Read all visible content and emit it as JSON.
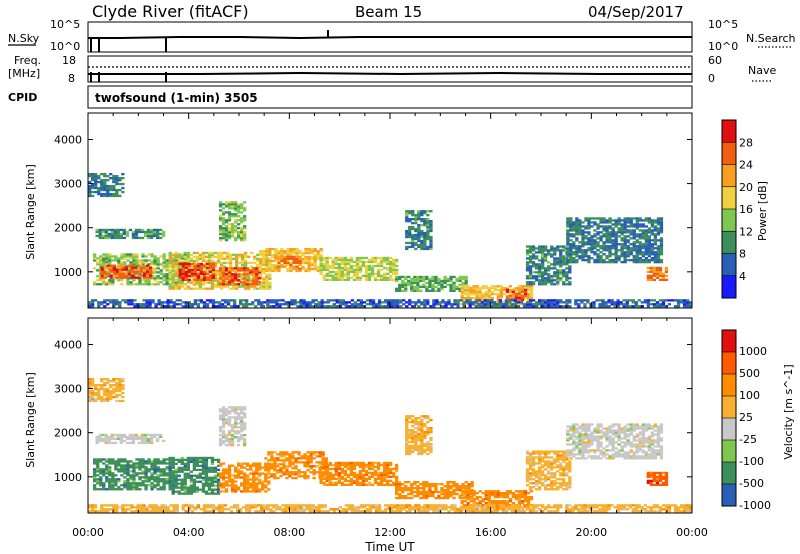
{
  "header": {
    "station": "Clyde River (fitACF)",
    "beam": "Beam 15",
    "date": "04/Sep/2017"
  },
  "strip_panels": {
    "nsky_label": "N.Sky",
    "nsearch_label": "N.Search",
    "log_top": "10^5",
    "log_bottom": "10^0",
    "freq_label_line1": "Freq.",
    "freq_label_line2": "[MHz]",
    "freq_top": "18",
    "freq_bottom": "8",
    "nave_label": "Nave",
    "nave_top": "60",
    "nave_bottom": "0",
    "cpid_label": "CPID",
    "cpid_value": "twofsound (1-min) 3505"
  },
  "colors": {
    "power": [
      "#1a1aff",
      "#2a5fb8",
      "#3c8f5a",
      "#7ec850",
      "#f0d040",
      "#f7a020",
      "#f06010",
      "#e01010"
    ],
    "velocity": [
      "#e01010",
      "#ff5a00",
      "#ff8c00",
      "#f7b030",
      "#c8c8c8",
      "#7ec850",
      "#3c8f5a",
      "#2a5fb8"
    ]
  },
  "chart_data": [
    {
      "type": "heatmap",
      "name": "power",
      "ylabel": "Slant Range [km]",
      "ylim": [
        180,
        4600
      ],
      "yticks": [
        "1000",
        "2000",
        "3000",
        "4000"
      ],
      "xlim": [
        "00:00",
        "24:00"
      ],
      "colorbar_label": "Power [dB]",
      "colorbar_ticks": [
        "4",
        "8",
        "12",
        "16",
        "20",
        "24",
        "28"
      ],
      "colorbar_range": [
        0,
        32
      ],
      "bands": [
        {
          "t0": 0.3,
          "t1": 3.0,
          "r0": 1750,
          "r1": 1950,
          "value": 10
        },
        {
          "t0": 0.2,
          "t1": 4.0,
          "r0": 700,
          "r1": 1400,
          "value": 14
        },
        {
          "t0": 0.5,
          "t1": 2.5,
          "r0": 850,
          "r1": 1150,
          "value": 26
        },
        {
          "t0": 3.2,
          "t1": 7.2,
          "r0": 600,
          "r1": 1450,
          "value": 18
        },
        {
          "t0": 3.6,
          "t1": 5.0,
          "r0": 800,
          "r1": 1200,
          "value": 28
        },
        {
          "t0": 5.2,
          "t1": 6.8,
          "r0": 700,
          "r1": 1100,
          "value": 26
        },
        {
          "t0": 6.8,
          "t1": 9.2,
          "r0": 1000,
          "r1": 1500,
          "value": 20
        },
        {
          "t0": 7.4,
          "t1": 8.4,
          "r0": 1050,
          "r1": 1350,
          "value": 24
        },
        {
          "t0": 9.2,
          "t1": 12.2,
          "r0": 800,
          "r1": 1300,
          "value": 16
        },
        {
          "t0": 12.2,
          "t1": 15.0,
          "r0": 550,
          "r1": 900,
          "value": 12
        },
        {
          "t0": 14.8,
          "t1": 17.6,
          "r0": 250,
          "r1": 700,
          "value": 20
        },
        {
          "t0": 16.6,
          "t1": 17.4,
          "r0": 350,
          "r1": 600,
          "value": 26
        },
        {
          "t0": 17.4,
          "t1": 19.2,
          "r0": 700,
          "r1": 1600,
          "value": 9
        },
        {
          "t0": 19.0,
          "t1": 22.8,
          "r0": 1200,
          "r1": 2200,
          "value": 8
        },
        {
          "t0": 22.2,
          "t1": 23.0,
          "r0": 800,
          "r1": 1100,
          "value": 24
        },
        {
          "t0": 0.0,
          "t1": 24.0,
          "r0": 200,
          "r1": 380,
          "value": 6
        },
        {
          "t0": 5.2,
          "t1": 6.2,
          "r0": 1700,
          "r1": 2600,
          "value": 14
        },
        {
          "t0": 12.6,
          "t1": 13.6,
          "r0": 1500,
          "r1": 2400,
          "value": 9
        },
        {
          "t0": 0.0,
          "t1": 1.4,
          "r0": 2700,
          "r1": 3200,
          "value": 8
        }
      ]
    },
    {
      "type": "heatmap",
      "name": "velocity",
      "ylabel": "Slant Range [km]",
      "xlabel": "Time UT",
      "ylim": [
        180,
        4600
      ],
      "yticks": [
        "1000",
        "2000",
        "3000",
        "4000"
      ],
      "xticks": [
        "00:00",
        "04:00",
        "08:00",
        "12:00",
        "16:00",
        "20:00",
        "00:00"
      ],
      "xlim": [
        "00:00",
        "24:00"
      ],
      "colorbar_label": "Velocity [m s^-1]",
      "colorbar_ticks": [
        "1000",
        "500",
        "100",
        "25",
        "-25",
        "-100",
        "-500",
        "-1000"
      ],
      "bands": [
        {
          "t0": 0.3,
          "t1": 3.0,
          "r0": 1750,
          "r1": 1950,
          "class": 4
        },
        {
          "t0": 0.2,
          "t1": 3.4,
          "r0": 700,
          "r1": 1400,
          "class": 6
        },
        {
          "t0": 3.2,
          "t1": 5.2,
          "r0": 600,
          "r1": 1450,
          "class": 6
        },
        {
          "t0": 5.2,
          "t1": 7.2,
          "r0": 650,
          "r1": 1300,
          "class": 2
        },
        {
          "t0": 7.0,
          "t1": 9.4,
          "r0": 950,
          "r1": 1550,
          "class": 2
        },
        {
          "t0": 9.2,
          "t1": 12.2,
          "r0": 800,
          "r1": 1300,
          "class": 2
        },
        {
          "t0": 12.2,
          "t1": 15.2,
          "r0": 500,
          "r1": 900,
          "class": 2
        },
        {
          "t0": 14.8,
          "t1": 17.6,
          "r0": 250,
          "r1": 700,
          "class": 2
        },
        {
          "t0": 17.4,
          "t1": 19.2,
          "r0": 700,
          "r1": 1600,
          "class": 3
        },
        {
          "t0": 19.0,
          "t1": 22.8,
          "r0": 1400,
          "r1": 2200,
          "class": 4
        },
        {
          "t0": 22.2,
          "t1": 23.0,
          "r0": 800,
          "r1": 1100,
          "class": 1
        },
        {
          "t0": 0.0,
          "t1": 24.0,
          "r0": 200,
          "r1": 380,
          "class": 3
        },
        {
          "t0": 5.2,
          "t1": 6.2,
          "r0": 1700,
          "r1": 2600,
          "class": 4
        },
        {
          "t0": 12.6,
          "t1": 13.6,
          "r0": 1500,
          "r1": 2400,
          "class": 3
        },
        {
          "t0": 0.0,
          "t1": 1.4,
          "r0": 2700,
          "r1": 3200,
          "class": 3
        }
      ]
    }
  ]
}
